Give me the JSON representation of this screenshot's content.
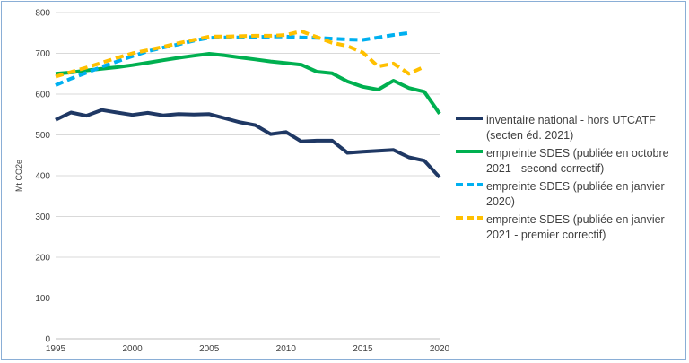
{
  "chart_data": {
    "type": "line",
    "ylabel": "Mt CO2e",
    "xlabel": "",
    "ylim": [
      0,
      800
    ],
    "xlim": [
      1995,
      2020
    ],
    "yticks": [
      0,
      100,
      200,
      300,
      400,
      500,
      600,
      700,
      800
    ],
    "xticks": [
      1995,
      2000,
      2005,
      2010,
      2015,
      2020
    ],
    "grid": "horizontal",
    "legend_position": "right",
    "series": [
      {
        "name": "inventaire national - hors UTCATF (secten éd. 2021)",
        "color": "#1f3864",
        "dash": "solid",
        "x": [
          1995,
          1996,
          1997,
          1998,
          1999,
          2000,
          2001,
          2002,
          2003,
          2004,
          2005,
          2006,
          2007,
          2008,
          2009,
          2010,
          2011,
          2012,
          2013,
          2014,
          2015,
          2016,
          2017,
          2018,
          2019,
          2020
        ],
        "values": [
          537,
          555,
          547,
          561,
          555,
          549,
          554,
          548,
          551,
          550,
          551,
          541,
          531,
          524,
          502,
          507,
          484,
          486,
          486,
          456,
          459,
          461,
          463,
          445,
          437,
          396
        ]
      },
      {
        "name": "empreinte SDES (publiée en octobre 2021 - second correctif)",
        "color": "#00b050",
        "dash": "solid",
        "x": [
          1995,
          1996,
          1997,
          1998,
          1999,
          2000,
          2001,
          2002,
          2003,
          2004,
          2005,
          2006,
          2007,
          2008,
          2009,
          2010,
          2011,
          2012,
          2013,
          2014,
          2015,
          2016,
          2017,
          2018,
          2019,
          2020
        ],
        "values": [
          650,
          653,
          658,
          662,
          666,
          671,
          677,
          683,
          689,
          694,
          699,
          695,
          690,
          685,
          680,
          676,
          672,
          655,
          651,
          631,
          618,
          611,
          633,
          615,
          606,
          552
        ]
      },
      {
        "name": "empreinte SDES (publiée en janvier 2020)",
        "color": "#00b0f0",
        "dash": "dashed",
        "x": [
          1995,
          1996,
          1997,
          1998,
          1999,
          2000,
          2001,
          2002,
          2003,
          2004,
          2005,
          2006,
          2007,
          2008,
          2009,
          2010,
          2011,
          2012,
          2013,
          2014,
          2015,
          2016,
          2017,
          2018
        ],
        "values": [
          622,
          638,
          652,
          667,
          680,
          693,
          705,
          714,
          722,
          731,
          738,
          739,
          739,
          740,
          741,
          741,
          739,
          738,
          736,
          734,
          733,
          739,
          745,
          750
        ]
      },
      {
        "name": "empreinte SDES (publiée en janvier 2021 - premier correctif)",
        "color": "#ffc000",
        "dash": "dashed",
        "x": [
          1995,
          1996,
          1997,
          1998,
          1999,
          2000,
          2001,
          2002,
          2003,
          2004,
          2005,
          2006,
          2007,
          2008,
          2009,
          2010,
          2011,
          2012,
          2013,
          2014,
          2015,
          2016,
          2017,
          2018,
          2019
        ],
        "values": [
          643,
          654,
          665,
          677,
          689,
          700,
          708,
          716,
          725,
          733,
          741,
          741,
          742,
          743,
          743,
          745,
          754,
          740,
          726,
          718,
          702,
          668,
          675,
          650,
          667
        ]
      }
    ]
  }
}
